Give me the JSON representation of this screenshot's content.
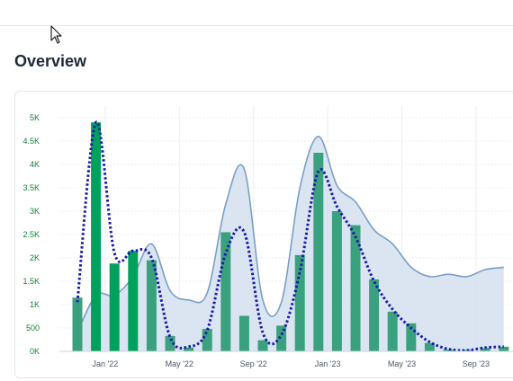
{
  "page": {
    "section_title": "Overview"
  },
  "colors": {
    "bar_highlight": "#00a15c",
    "bar": "#3aa17e",
    "area_fill": "#d3e0ee",
    "area_line": "#7a9fc6",
    "dotted_line": "#1a1aa6",
    "grid": "#eceff3",
    "ytick": "#15803d"
  },
  "chart_data": {
    "type": "bar",
    "ylim": [
      0,
      5000
    ],
    "y_ticks": [
      "0K",
      "500",
      "1K",
      "1.5K",
      "2K",
      "2.5K",
      "3K",
      "3.5K",
      "4K",
      "4.5K",
      "5K"
    ],
    "y_tick_values": [
      0,
      500,
      1000,
      1500,
      2000,
      2500,
      3000,
      3500,
      4000,
      4500,
      5000
    ],
    "x_ticks": [
      "Jan '22",
      "May '22",
      "Sep '22",
      "Jan '23",
      "May '23",
      "Sep '23"
    ],
    "x_tick_positions": [
      1.5,
      5.5,
      9.5,
      13.5,
      17.5,
      21.5
    ],
    "grid": true,
    "series": [
      {
        "kind": "bar",
        "values": [
          1150,
          4900,
          1880,
          2150,
          1950,
          330,
          80,
          480,
          2550,
          760,
          240,
          550,
          2060,
          4250,
          3000,
          2700,
          1540,
          850,
          600,
          180,
          40,
          30,
          70,
          100
        ]
      },
      {
        "kind": "area",
        "values": [
          400,
          1200,
          1200,
          1600,
          2300,
          1300,
          1100,
          1250,
          3150,
          3900,
          1100,
          1050,
          3500,
          4600,
          3550,
          3200,
          2600,
          2300,
          1800,
          1600,
          1650,
          1600,
          1750,
          1800
        ]
      },
      {
        "kind": "dotted",
        "values": [
          1050,
          4900,
          2100,
          2150,
          2000,
          300,
          100,
          450,
          2100,
          2550,
          400,
          350,
          1700,
          3850,
          3100,
          2450,
          1500,
          900,
          500,
          200,
          50,
          20,
          80,
          100
        ]
      }
    ]
  }
}
